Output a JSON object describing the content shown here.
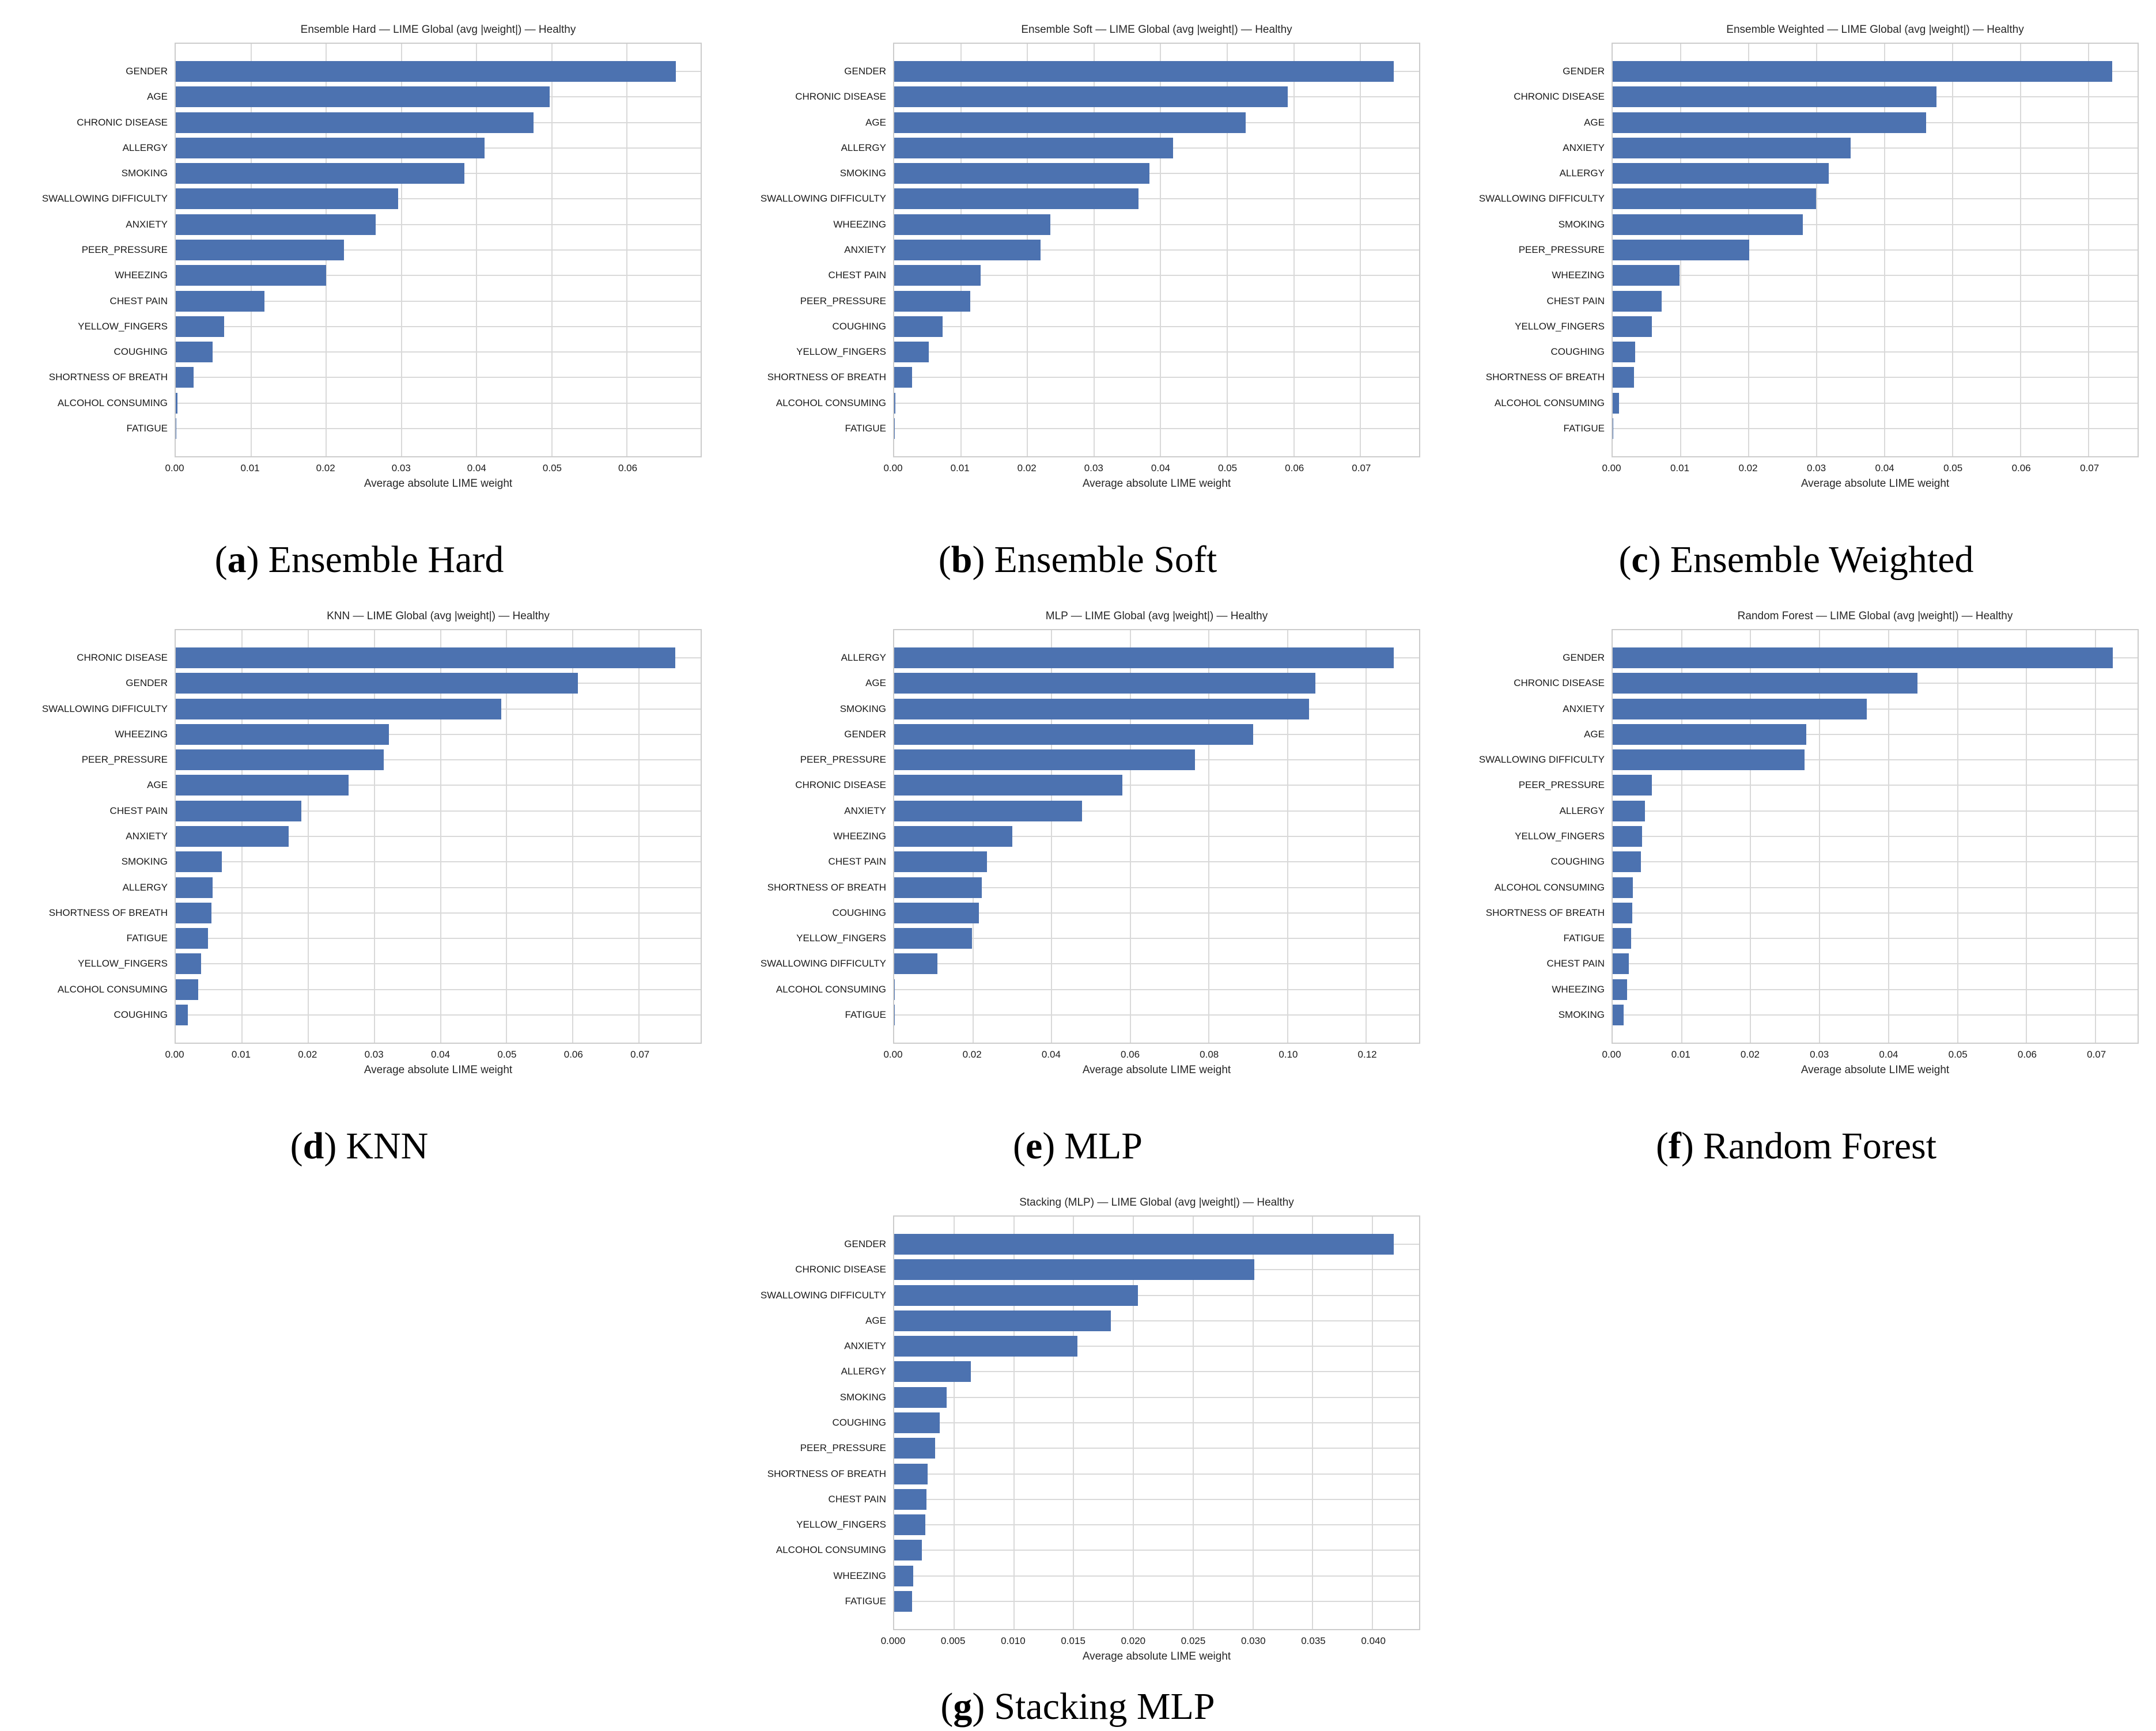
{
  "style": {
    "bar_color": "#4C72B0",
    "grid_color": "#d9d9d9",
    "frame_color": "#cccccc",
    "title_color": "#262626",
    "tick_color": "#1a1a1a"
  },
  "chart_data": [
    {
      "id": "ensemble-hard",
      "type": "bar",
      "orientation": "horizontal",
      "title": "Ensemble Hard — LIME Global (avg |weight|) — Healthy",
      "xlabel": "Average absolute LIME weight",
      "grid": true,
      "xlim": [
        0,
        0.0698
      ],
      "xticks": [
        0.0,
        0.01,
        0.02,
        0.03,
        0.04,
        0.05,
        0.06
      ],
      "xtick_labels": [
        "0.00",
        "0.01",
        "0.02",
        "0.03",
        "0.04",
        "0.05",
        "0.06"
      ],
      "categories": [
        "GENDER",
        "AGE",
        "CHRONIC DISEASE",
        "ALLERGY",
        "SMOKING",
        "SWALLOWING DIFFICULTY",
        "ANXIETY",
        "PEER_PRESSURE",
        "WHEEZING",
        "CHEST PAIN",
        "YELLOW_FINGERS",
        "COUGHING",
        "SHORTNESS OF BREATH",
        "ALCOHOL CONSUMING",
        "FATIGUE"
      ],
      "values": [
        0.0665,
        0.0497,
        0.0476,
        0.0411,
        0.0384,
        0.0296,
        0.0266,
        0.0224,
        0.02,
        0.0118,
        0.0064,
        0.0049,
        0.0024,
        0.0002,
        0.0001
      ],
      "caption": {
        "open": "(",
        "letter": "a",
        "close": ")",
        "label": "Ensemble Hard"
      }
    },
    {
      "id": "ensemble-soft",
      "type": "bar",
      "orientation": "horizontal",
      "title": "Ensemble Soft — LIME Global (avg |weight|) — Healthy",
      "xlabel": "Average absolute LIME weight",
      "grid": true,
      "xlim": [
        0,
        0.0788
      ],
      "xticks": [
        0.0,
        0.01,
        0.02,
        0.03,
        0.04,
        0.05,
        0.06,
        0.07
      ],
      "xtick_labels": [
        "0.00",
        "0.01",
        "0.02",
        "0.03",
        "0.04",
        "0.05",
        "0.06",
        "0.07"
      ],
      "categories": [
        "GENDER",
        "CHRONIC DISEASE",
        "AGE",
        "ALLERGY",
        "SMOKING",
        "SWALLOWING DIFFICULTY",
        "WHEEZING",
        "ANXIETY",
        "CHEST PAIN",
        "PEER_PRESSURE",
        "COUGHING",
        "YELLOW_FINGERS",
        "SHORTNESS OF BREATH",
        "ALCOHOL CONSUMING",
        "FATIGUE"
      ],
      "values": [
        0.075,
        0.0591,
        0.0528,
        0.0419,
        0.0383,
        0.0367,
        0.0234,
        0.022,
        0.013,
        0.0114,
        0.0073,
        0.0052,
        0.0027,
        0.0002,
        0.0001
      ],
      "caption": {
        "open": "(",
        "letter": "b",
        "close": ")",
        "label": "Ensemble Soft"
      }
    },
    {
      "id": "ensemble-weighted",
      "type": "bar",
      "orientation": "horizontal",
      "title": "Ensemble Weighted — LIME Global (avg |weight|) — Healthy",
      "xlabel": "Average absolute LIME weight",
      "grid": true,
      "xlim": [
        0,
        0.0772
      ],
      "xticks": [
        0.0,
        0.01,
        0.02,
        0.03,
        0.04,
        0.05,
        0.06,
        0.07
      ],
      "xtick_labels": [
        "0.00",
        "0.01",
        "0.02",
        "0.03",
        "0.04",
        "0.05",
        "0.06",
        "0.07"
      ],
      "categories": [
        "GENDER",
        "CHRONIC DISEASE",
        "AGE",
        "ANXIETY",
        "ALLERGY",
        "SWALLOWING DIFFICULTY",
        "SMOKING",
        "PEER_PRESSURE",
        "WHEEZING",
        "CHEST PAIN",
        "YELLOW_FINGERS",
        "COUGHING",
        "SHORTNESS OF BREATH",
        "ALCOHOL CONSUMING",
        "FATIGUE"
      ],
      "values": [
        0.0735,
        0.0476,
        0.0461,
        0.035,
        0.0318,
        0.0299,
        0.028,
        0.0201,
        0.0098,
        0.0072,
        0.0058,
        0.0033,
        0.0031,
        0.0009,
        0.0001
      ],
      "caption": {
        "open": "(",
        "letter": "c",
        "close": ")",
        "label": "Ensemble Weighted"
      }
    },
    {
      "id": "knn",
      "type": "bar",
      "orientation": "horizontal",
      "title": "KNN — LIME Global (avg |weight|) — Healthy",
      "xlabel": "Average absolute LIME weight",
      "grid": true,
      "xlim": [
        0,
        0.0793
      ],
      "xticks": [
        0.0,
        0.01,
        0.02,
        0.03,
        0.04,
        0.05,
        0.06,
        0.07
      ],
      "xtick_labels": [
        "0.00",
        "0.01",
        "0.02",
        "0.03",
        "0.04",
        "0.05",
        "0.06",
        "0.07"
      ],
      "categories": [
        "CHRONIC DISEASE",
        "GENDER",
        "SWALLOWING DIFFICULTY",
        "WHEEZING",
        "PEER_PRESSURE",
        "AGE",
        "CHEST PAIN",
        "ANXIETY",
        "SMOKING",
        "ALLERGY",
        "SHORTNESS OF BREATH",
        "FATIGUE",
        "YELLOW_FINGERS",
        "ALCOHOL CONSUMING",
        "COUGHING"
      ],
      "values": [
        0.0755,
        0.0608,
        0.0492,
        0.0322,
        0.0314,
        0.0261,
        0.019,
        0.0171,
        0.007,
        0.0056,
        0.0054,
        0.0049,
        0.0038,
        0.0034,
        0.0018
      ],
      "caption": {
        "open": "(",
        "letter": "d",
        "close": ")",
        "label": "KNN"
      }
    },
    {
      "id": "mlp",
      "type": "bar",
      "orientation": "horizontal",
      "title": "MLP — LIME Global (avg |weight|) — Healthy",
      "xlabel": "Average absolute LIME weight",
      "grid": true,
      "xlim": [
        0,
        0.1334
      ],
      "xticks": [
        0.0,
        0.02,
        0.04,
        0.06,
        0.08,
        0.1,
        0.12
      ],
      "xtick_labels": [
        "0.00",
        "0.02",
        "0.04",
        "0.06",
        "0.08",
        "0.10",
        "0.12"
      ],
      "categories": [
        "ALLERGY",
        "AGE",
        "SMOKING",
        "GENDER",
        "PEER_PRESSURE",
        "CHRONIC DISEASE",
        "ANXIETY",
        "WHEEZING",
        "CHEST PAIN",
        "SHORTNESS OF BREATH",
        "COUGHING",
        "YELLOW_FINGERS",
        "SWALLOWING DIFFICULTY",
        "ALCOHOL CONSUMING",
        "FATIGUE"
      ],
      "values": [
        0.127,
        0.107,
        0.1055,
        0.0912,
        0.0765,
        0.058,
        0.0478,
        0.03,
        0.0236,
        0.0222,
        0.0215,
        0.0198,
        0.011,
        0.0002,
        0.0001
      ],
      "caption": {
        "open": "(",
        "letter": "e",
        "close": ")",
        "label": "MLP"
      }
    },
    {
      "id": "random-forest",
      "type": "bar",
      "orientation": "horizontal",
      "title": "Random Forest — LIME Global (avg |weight|) — Healthy",
      "xlabel": "Average absolute LIME weight",
      "grid": true,
      "xlim": [
        0,
        0.0761
      ],
      "xticks": [
        0.0,
        0.01,
        0.02,
        0.03,
        0.04,
        0.05,
        0.06,
        0.07
      ],
      "xtick_labels": [
        "0.00",
        "0.01",
        "0.02",
        "0.03",
        "0.04",
        "0.05",
        "0.06",
        "0.07"
      ],
      "categories": [
        "GENDER",
        "CHRONIC DISEASE",
        "ANXIETY",
        "AGE",
        "SWALLOWING DIFFICULTY",
        "PEER_PRESSURE",
        "ALLERGY",
        "YELLOW_FINGERS",
        "COUGHING",
        "ALCOHOL CONSUMING",
        "SHORTNESS OF BREATH",
        "FATIGUE",
        "CHEST PAIN",
        "WHEEZING",
        "SMOKING"
      ],
      "values": [
        0.0725,
        0.0442,
        0.0368,
        0.0281,
        0.0278,
        0.0057,
        0.0047,
        0.0043,
        0.0041,
        0.0029,
        0.0028,
        0.0027,
        0.0023,
        0.0021,
        0.0016
      ],
      "caption": {
        "open": "(",
        "letter": "f",
        "close": ")",
        "label": "Random Forest"
      }
    },
    {
      "id": "stacking-mlp",
      "type": "bar",
      "orientation": "horizontal",
      "title": "Stacking (MLP) — LIME Global (avg |weight|) — Healthy",
      "xlabel": "Average absolute LIME weight",
      "grid": true,
      "xlim": [
        0,
        0.0439
      ],
      "xticks": [
        0.0,
        0.005,
        0.01,
        0.015,
        0.02,
        0.025,
        0.03,
        0.035,
        0.04
      ],
      "xtick_labels": [
        "0.000",
        "0.005",
        "0.010",
        "0.015",
        "0.020",
        "0.025",
        "0.030",
        "0.035",
        "0.040"
      ],
      "categories": [
        "GENDER",
        "CHRONIC DISEASE",
        "SWALLOWING DIFFICULTY",
        "AGE",
        "ANXIETY",
        "ALLERGY",
        "SMOKING",
        "COUGHING",
        "PEER_PRESSURE",
        "SHORTNESS OF BREATH",
        "CHEST PAIN",
        "YELLOW_FINGERS",
        "ALCOHOL CONSUMING",
        "WHEEZING",
        "FATIGUE"
      ],
      "values": [
        0.0418,
        0.0301,
        0.0204,
        0.0181,
        0.0153,
        0.0064,
        0.0044,
        0.0038,
        0.0034,
        0.0028,
        0.0027,
        0.0026,
        0.0023,
        0.0016,
        0.0015
      ],
      "caption": {
        "open": "(",
        "letter": "g",
        "close": ")",
        "label": "Stacking MLP"
      }
    }
  ]
}
